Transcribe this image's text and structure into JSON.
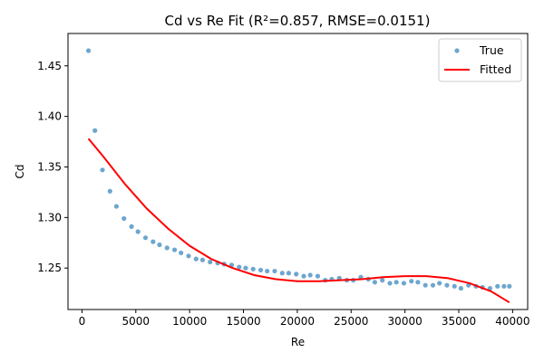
{
  "chart_data": {
    "type": "scatter",
    "title": "Cd vs Re Fit (R²=0.857, RMSE=0.0151)",
    "xlabel": "Re",
    "ylabel": "Cd",
    "xlim": [
      -1300,
      41400
    ],
    "ylim": [
      1.209,
      1.482
    ],
    "xticks": [
      0,
      5000,
      10000,
      15000,
      20000,
      25000,
      30000,
      35000,
      40000
    ],
    "yticks": [
      1.25,
      1.3,
      1.35,
      1.4,
      1.45
    ],
    "xtick_labels": [
      "0",
      "5000",
      "10000",
      "15000",
      "20000",
      "25000",
      "30000",
      "35000",
      "40000"
    ],
    "ytick_labels": [
      "1.25",
      "1.30",
      "1.35",
      "1.40",
      "1.45"
    ],
    "grid": false,
    "legend": {
      "position": "upper right",
      "entries": [
        "True",
        "Fitted"
      ]
    },
    "series": [
      {
        "name": "True",
        "kind": "scatter",
        "color": "#1f77b4",
        "x": [
          600,
          1200,
          1900,
          2600,
          3200,
          3900,
          4600,
          5200,
          5900,
          6600,
          7200,
          7900,
          8600,
          9200,
          9900,
          10600,
          11200,
          11900,
          12600,
          13200,
          13900,
          14600,
          15200,
          15900,
          16600,
          17200,
          17900,
          18600,
          19200,
          19900,
          20600,
          21200,
          21900,
          22600,
          23200,
          23900,
          24600,
          25200,
          25900,
          26600,
          27200,
          27900,
          28600,
          29200,
          29900,
          30600,
          31200,
          31900,
          32600,
          33200,
          33900,
          34600,
          35200,
          35900,
          36600,
          37200,
          37900,
          38600,
          39200,
          39700
        ],
        "y": [
          1.465,
          1.386,
          1.347,
          1.326,
          1.311,
          1.299,
          1.291,
          1.286,
          1.28,
          1.276,
          1.273,
          1.27,
          1.268,
          1.265,
          1.262,
          1.259,
          1.258,
          1.256,
          1.255,
          1.254,
          1.253,
          1.251,
          1.25,
          1.249,
          1.248,
          1.247,
          1.247,
          1.245,
          1.245,
          1.244,
          1.242,
          1.243,
          1.242,
          1.238,
          1.239,
          1.24,
          1.238,
          1.238,
          1.241,
          1.239,
          1.236,
          1.238,
          1.235,
          1.236,
          1.235,
          1.237,
          1.236,
          1.233,
          1.233,
          1.235,
          1.233,
          1.232,
          1.23,
          1.233,
          1.232,
          1.231,
          1.23,
          1.232,
          1.232,
          1.232
        ]
      },
      {
        "name": "Fitted",
        "kind": "line",
        "color": "#ff0000",
        "x": [
          600,
          2000,
          4000,
          6000,
          8000,
          10000,
          12000,
          14000,
          16000,
          18000,
          20000,
          22000,
          24000,
          26000,
          28000,
          30000,
          32000,
          34000,
          36000,
          38000,
          39700
        ],
        "y": [
          1.378,
          1.36,
          1.333,
          1.309,
          1.289,
          1.272,
          1.259,
          1.25,
          1.243,
          1.239,
          1.237,
          1.237,
          1.238,
          1.239,
          1.241,
          1.242,
          1.242,
          1.24,
          1.235,
          1.227,
          1.216
        ]
      }
    ]
  }
}
